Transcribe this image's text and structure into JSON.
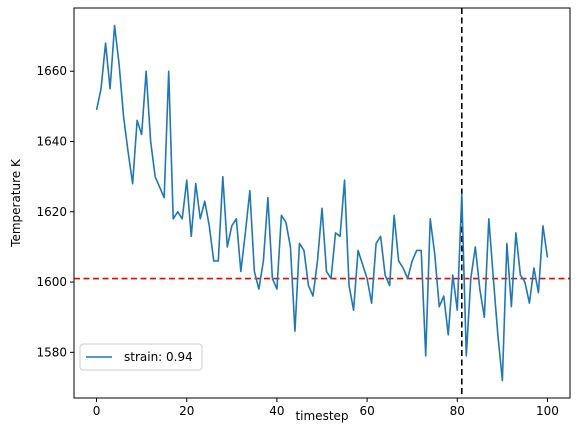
{
  "chart_data": {
    "type": "line",
    "title": "",
    "xlabel": "timestep",
    "ylabel": "Temperature K",
    "xlim": [
      -5,
      105
    ],
    "ylim": [
      1567,
      1678
    ],
    "xticks": [
      0,
      20,
      40,
      60,
      80,
      100
    ],
    "yticks": [
      1580,
      1600,
      1620,
      1640,
      1660
    ],
    "grid": false,
    "legend_position": "lower-left",
    "series": [
      {
        "name": "strain: 0.94",
        "color": "#1f77b4",
        "x": [
          0,
          1,
          2,
          3,
          4,
          5,
          6,
          7,
          8,
          9,
          10,
          11,
          12,
          13,
          14,
          15,
          16,
          17,
          18,
          19,
          20,
          21,
          22,
          23,
          24,
          25,
          26,
          27,
          28,
          29,
          30,
          31,
          32,
          33,
          34,
          35,
          36,
          37,
          38,
          39,
          40,
          41,
          42,
          43,
          44,
          45,
          46,
          47,
          48,
          49,
          50,
          51,
          52,
          53,
          54,
          55,
          56,
          57,
          58,
          59,
          60,
          61,
          62,
          63,
          64,
          65,
          66,
          67,
          68,
          69,
          70,
          71,
          72,
          73,
          74,
          75,
          76,
          77,
          78,
          79,
          80,
          81,
          82,
          83,
          84,
          85,
          86,
          87,
          88,
          89,
          90,
          91,
          92,
          93,
          94,
          95,
          96,
          97,
          98,
          99,
          100
        ],
        "y": [
          1649,
          1655,
          1668,
          1655,
          1673,
          1662,
          1647,
          1637,
          1628,
          1646,
          1642,
          1660,
          1640,
          1630,
          1627,
          1624,
          1660,
          1618,
          1620,
          1618,
          1629,
          1613,
          1628,
          1618,
          1623,
          1616,
          1606,
          1606,
          1630,
          1610,
          1616,
          1618,
          1603,
          1614,
          1626,
          1603,
          1598,
          1606,
          1624,
          1601,
          1598,
          1619,
          1617,
          1610,
          1586,
          1611,
          1609,
          1599,
          1596,
          1606,
          1621,
          1603,
          1601,
          1614,
          1613,
          1629,
          1599,
          1592,
          1609,
          1605,
          1601,
          1594,
          1611,
          1613,
          1602,
          1599,
          1619,
          1606,
          1604,
          1601,
          1606,
          1609,
          1609,
          1579,
          1618,
          1608,
          1593,
          1596,
          1585,
          1602,
          1592,
          1625,
          1579,
          1601,
          1610,
          1598,
          1590,
          1618,
          1601,
          1585,
          1572,
          1611,
          1593,
          1614,
          1602,
          1600,
          1594,
          1604,
          1597,
          1616,
          1607
        ]
      }
    ],
    "reference_lines": [
      {
        "orientation": "horizontal",
        "value": 1601,
        "color": "#ff0000",
        "style": "dashed"
      },
      {
        "orientation": "vertical",
        "value": 81,
        "color": "#000000",
        "style": "dashed"
      }
    ]
  }
}
